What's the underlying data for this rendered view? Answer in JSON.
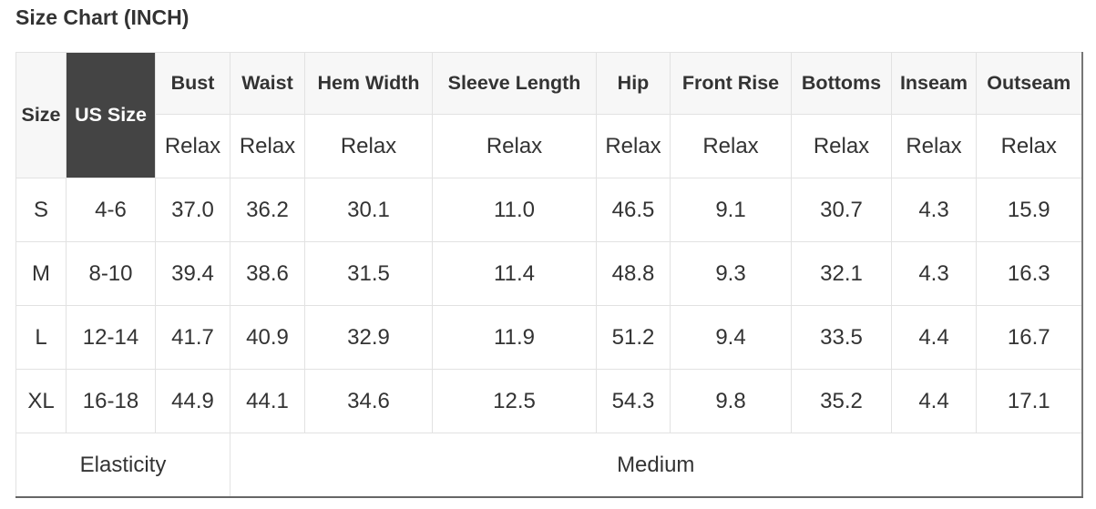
{
  "title": "Size Chart (INCH)",
  "header": {
    "size": "Size",
    "us_size": "US Size",
    "columns": [
      "Bust",
      "Waist",
      "Hem Width",
      "Sleeve Length",
      "Hip",
      "Front Rise",
      "Bottoms",
      "Inseam",
      "Outseam"
    ],
    "sub": [
      "Relax",
      "Relax",
      "Relax",
      "Relax",
      "Relax",
      "Relax",
      "Relax",
      "Relax",
      "Relax"
    ]
  },
  "rows": [
    {
      "size": "S",
      "us": "4-6",
      "values": [
        "37.0",
        "36.2",
        "30.1",
        "11.0",
        "46.5",
        "9.1",
        "30.7",
        "4.3",
        "15.9"
      ]
    },
    {
      "size": "M",
      "us": "8-10",
      "values": [
        "39.4",
        "38.6",
        "31.5",
        "11.4",
        "48.8",
        "9.3",
        "32.1",
        "4.3",
        "16.3"
      ]
    },
    {
      "size": "L",
      "us": "12-14",
      "values": [
        "41.7",
        "40.9",
        "32.9",
        "11.9",
        "51.2",
        "9.4",
        "33.5",
        "4.4",
        "16.7"
      ]
    },
    {
      "size": "XL",
      "us": "16-18",
      "values": [
        "44.9",
        "44.1",
        "34.6",
        "12.5",
        "54.3",
        "9.8",
        "35.2",
        "4.4",
        "17.1"
      ]
    }
  ],
  "footer": {
    "label": "Elasticity",
    "value": "Medium"
  },
  "colors": {
    "header_bg": "#f7f7f7",
    "us_size_bg": "#444444",
    "border": "#e2e2e2"
  }
}
